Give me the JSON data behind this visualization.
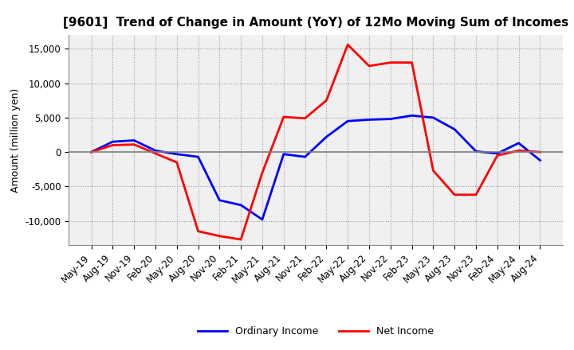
{
  "title": "[9601]  Trend of Change in Amount (YoY) of 12Mo Moving Sum of Incomes",
  "ylabel": "Amount (million yen)",
  "x_labels": [
    "May-19",
    "Aug-19",
    "Nov-19",
    "Feb-20",
    "May-20",
    "Aug-20",
    "Nov-20",
    "Feb-21",
    "May-21",
    "Aug-21",
    "Nov-21",
    "Feb-22",
    "May-22",
    "Aug-22",
    "Nov-22",
    "Feb-23",
    "May-23",
    "Aug-23",
    "Nov-23",
    "Feb-24",
    "May-24",
    "Aug-24"
  ],
  "ordinary_income": [
    0,
    1500,
    1700,
    200,
    -300,
    -700,
    -7000,
    -7700,
    -9800,
    -300,
    -700,
    2200,
    4500,
    4700,
    4800,
    5300,
    5000,
    3300,
    100,
    -200,
    1300,
    -1200
  ],
  "net_income": [
    0,
    1000,
    1100,
    -200,
    -1500,
    -11500,
    -12200,
    -12700,
    -3000,
    5100,
    4900,
    7500,
    15600,
    12500,
    13000,
    13000,
    -2700,
    -6200,
    -6200,
    -500,
    200,
    0
  ],
  "ordinary_income_color": "#0000FF",
  "net_income_color": "#FF0000",
  "ylim": [
    -13500,
    17000
  ],
  "yticks": [
    -10000,
    -5000,
    0,
    5000,
    10000,
    15000
  ],
  "plot_bg_color": "#F0F0F0",
  "background_color": "#FFFFFF",
  "grid_color": "#999999",
  "zero_line_color": "#808080",
  "legend_ordinary": "Ordinary Income",
  "legend_net": "Net Income",
  "title_fontsize": 11,
  "tick_fontsize": 8.5,
  "ylabel_fontsize": 9
}
